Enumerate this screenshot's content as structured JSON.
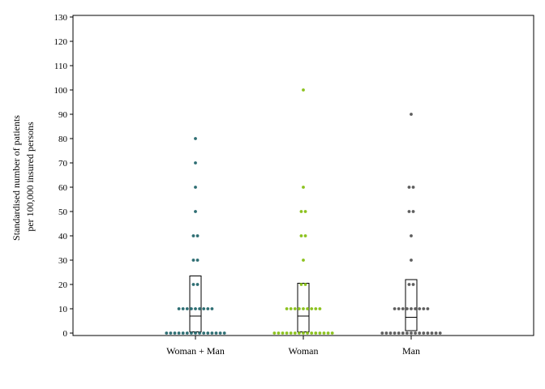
{
  "chart_data": {
    "type": "scatter",
    "subtype": "dot-plot-with-boxes",
    "ylabel_line1": "Standardised number of patients",
    "ylabel_line2": "per 100,000 insured persons",
    "ylim": [
      0,
      130
    ],
    "yticks": [
      0,
      10,
      20,
      30,
      40,
      50,
      60,
      70,
      80,
      90,
      100,
      110,
      120,
      130
    ],
    "grid": false,
    "categories": [
      "Woman + Man",
      "Woman",
      "Man"
    ],
    "series": [
      {
        "color": "#2e6e73",
        "points": [
          {
            "y": 0,
            "count": 15
          },
          {
            "y": 10,
            "count": 9
          },
          {
            "y": 20,
            "count": 2
          },
          {
            "y": 30,
            "count": 2
          },
          {
            "y": 40,
            "count": 2
          },
          {
            "y": 50,
            "count": 1
          },
          {
            "y": 60,
            "count": 1
          },
          {
            "y": 70,
            "count": 1
          },
          {
            "y": 80,
            "count": 1
          }
        ],
        "box": {
          "q1": 0.5,
          "median": 7,
          "q3": 23.5
        }
      },
      {
        "color": "#8cc21f",
        "points": [
          {
            "y": 0,
            "count": 15
          },
          {
            "y": 10,
            "count": 9
          },
          {
            "y": 20,
            "count": 2
          },
          {
            "y": 30,
            "count": 1
          },
          {
            "y": 40,
            "count": 2
          },
          {
            "y": 50,
            "count": 2
          },
          {
            "y": 60,
            "count": 1
          },
          {
            "y": 100,
            "count": 1
          }
        ],
        "box": {
          "q1": 0.5,
          "median": 7,
          "q3": 20.5
        }
      },
      {
        "color": "#5e5e5e",
        "points": [
          {
            "y": 0,
            "count": 15
          },
          {
            "y": 10,
            "count": 9
          },
          {
            "y": 20,
            "count": 2
          },
          {
            "y": 30,
            "count": 1
          },
          {
            "y": 40,
            "count": 1
          },
          {
            "y": 50,
            "count": 2
          },
          {
            "y": 60,
            "count": 2
          },
          {
            "y": 90,
            "count": 1
          }
        ],
        "box": {
          "q1": 1,
          "median": 6.5,
          "q3": 22
        }
      }
    ]
  }
}
